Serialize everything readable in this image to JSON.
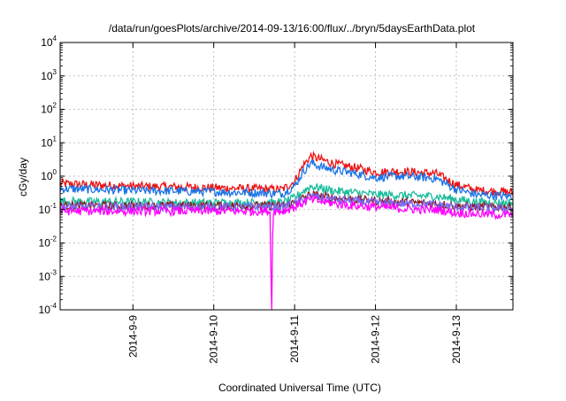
{
  "chart_data": {
    "type": "line",
    "title": "/data/run/goesPlots/archive/2014-09-13/16:00/flux/../bryn/5daysEarthData.plot",
    "xlabel": "Coordinated Universal Time (UTC)",
    "ylabel": "cGy/day",
    "yscale": "log",
    "ylim": [
      0.0001,
      10000
    ],
    "xlim_days": [
      8.1,
      13.7
    ],
    "x_ticks": [
      {
        "label": "2014-9-9",
        "day": 9
      },
      {
        "label": "2014-9-10",
        "day": 10
      },
      {
        "label": "2014-9-11",
        "day": 11
      },
      {
        "label": "2014-9-12",
        "day": 12
      },
      {
        "label": "2014-9-13",
        "day": 13
      }
    ],
    "y_ticks": [
      {
        "base": "10",
        "exp": "-4",
        "value": 0.0001
      },
      {
        "base": "10",
        "exp": "-3",
        "value": 0.001
      },
      {
        "base": "10",
        "exp": "-2",
        "value": 0.01
      },
      {
        "base": "10",
        "exp": "-1",
        "value": 0.1
      },
      {
        "base": "10",
        "exp": "0",
        "value": 1
      },
      {
        "base": "10",
        "exp": "1",
        "value": 10
      },
      {
        "base": "10",
        "exp": "2",
        "value": 100
      },
      {
        "base": "10",
        "exp": "3",
        "value": 1000
      },
      {
        "base": "10",
        "exp": "4",
        "value": 10000
      }
    ],
    "grid": true,
    "legend": "none",
    "series": [
      {
        "color": "#ee1111",
        "x": [
          8.1,
          8.5,
          9.0,
          9.5,
          10.0,
          10.5,
          10.85,
          11.0,
          11.1,
          11.2,
          11.3,
          11.5,
          11.75,
          12.0,
          12.25,
          12.5,
          12.75,
          13.0,
          13.25,
          13.5,
          13.7
        ],
        "y": [
          0.6,
          0.55,
          0.5,
          0.48,
          0.45,
          0.42,
          0.4,
          0.7,
          2.0,
          4.0,
          3.3,
          2.3,
          1.8,
          1.3,
          1.4,
          1.3,
          1.2,
          0.55,
          0.38,
          0.35,
          0.33
        ]
      },
      {
        "color": "#1a73e8",
        "x": [
          8.1,
          8.5,
          9.0,
          9.5,
          10.0,
          10.5,
          10.85,
          11.0,
          11.1,
          11.2,
          11.3,
          11.5,
          11.75,
          12.0,
          12.25,
          12.5,
          12.75,
          13.0,
          13.25,
          13.5,
          13.7
        ],
        "y": [
          0.42,
          0.4,
          0.37,
          0.36,
          0.34,
          0.32,
          0.3,
          0.5,
          1.3,
          2.5,
          2.0,
          1.5,
          1.2,
          0.9,
          1.0,
          0.95,
          0.85,
          0.4,
          0.28,
          0.26,
          0.25
        ]
      },
      {
        "color": "#1abc9c",
        "x": [
          8.1,
          8.5,
          9.0,
          9.5,
          10.0,
          10.5,
          10.85,
          11.0,
          11.1,
          11.2,
          11.3,
          11.5,
          11.75,
          12.0,
          12.25,
          12.5,
          12.75,
          13.0,
          13.25,
          13.5,
          13.7
        ],
        "y": [
          0.18,
          0.17,
          0.17,
          0.16,
          0.16,
          0.16,
          0.16,
          0.22,
          0.35,
          0.5,
          0.45,
          0.36,
          0.32,
          0.28,
          0.27,
          0.26,
          0.25,
          0.2,
          0.17,
          0.16,
          0.16
        ]
      },
      {
        "color": "#8b1a1a",
        "x": [
          8.1,
          8.5,
          9.0,
          9.5,
          10.0,
          10.5,
          10.85,
          11.0,
          11.1,
          11.2,
          11.3,
          11.5,
          11.75,
          12.0,
          12.25,
          12.5,
          12.75,
          13.0,
          13.25,
          13.5,
          13.7
        ],
        "y": [
          0.13,
          0.13,
          0.13,
          0.13,
          0.13,
          0.13,
          0.13,
          0.16,
          0.22,
          0.28,
          0.26,
          0.22,
          0.2,
          0.18,
          0.17,
          0.16,
          0.15,
          0.13,
          0.12,
          0.12,
          0.12
        ]
      },
      {
        "color": "#7b68ee",
        "x": [
          8.1,
          8.5,
          9.0,
          9.5,
          10.0,
          10.5,
          10.85,
          11.0,
          11.1,
          11.2,
          11.3,
          11.5,
          11.75,
          12.0,
          12.25,
          12.5,
          12.75,
          13.0,
          13.25,
          13.5,
          13.7
        ],
        "y": [
          0.12,
          0.12,
          0.12,
          0.12,
          0.12,
          0.12,
          0.12,
          0.15,
          0.2,
          0.25,
          0.23,
          0.2,
          0.18,
          0.16,
          0.15,
          0.15,
          0.14,
          0.12,
          0.11,
          0.11,
          0.11
        ]
      },
      {
        "color": "#ff00ff",
        "x": [
          8.1,
          8.5,
          9.0,
          9.5,
          10.0,
          10.5,
          10.7,
          10.71,
          10.72,
          10.73,
          10.85,
          11.0,
          11.1,
          11.2,
          11.3,
          11.5,
          11.75,
          12.0,
          12.25,
          12.5,
          12.75,
          13.0,
          13.25,
          13.5,
          13.7
        ],
        "y": [
          0.09,
          0.09,
          0.09,
          0.09,
          0.09,
          0.09,
          0.09,
          0.0001,
          0.0001,
          0.09,
          0.09,
          0.12,
          0.16,
          0.2,
          0.18,
          0.15,
          0.13,
          0.12,
          0.11,
          0.1,
          0.1,
          0.08,
          0.075,
          0.07,
          0.07
        ]
      }
    ]
  }
}
